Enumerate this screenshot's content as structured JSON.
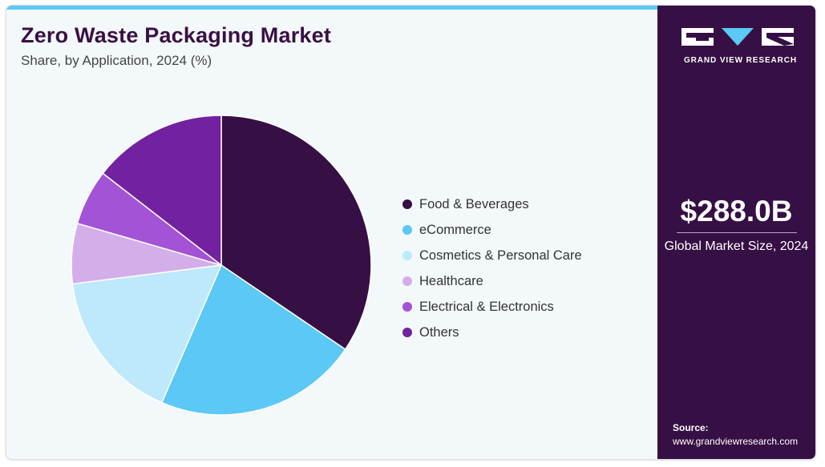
{
  "header": {
    "title": "Zero Waste Packaging Market",
    "subtitle": "Share, by Application, 2024 (%)"
  },
  "chart_data": {
    "type": "pie",
    "categories": [
      "Food & Beverages",
      "eCommerce",
      "Cosmetics & Personal Care",
      "Healthcare",
      "Electrical & Electronics",
      "Others"
    ],
    "values": [
      34.5,
      22.0,
      16.5,
      6.5,
      6.0,
      14.5
    ],
    "colors": [
      "#360f44",
      "#5bc8f5",
      "#bde9fa",
      "#d4aeea",
      "#a353d6",
      "#7222a0"
    ],
    "legend_position": "right"
  },
  "sidebar": {
    "logo_text": "GRAND VIEW RESEARCH",
    "kpi_value": "$288.0B",
    "kpi_label": "Global Market Size, 2024",
    "source_title": "Source:",
    "source_url": "www.grandviewresearch.com"
  }
}
